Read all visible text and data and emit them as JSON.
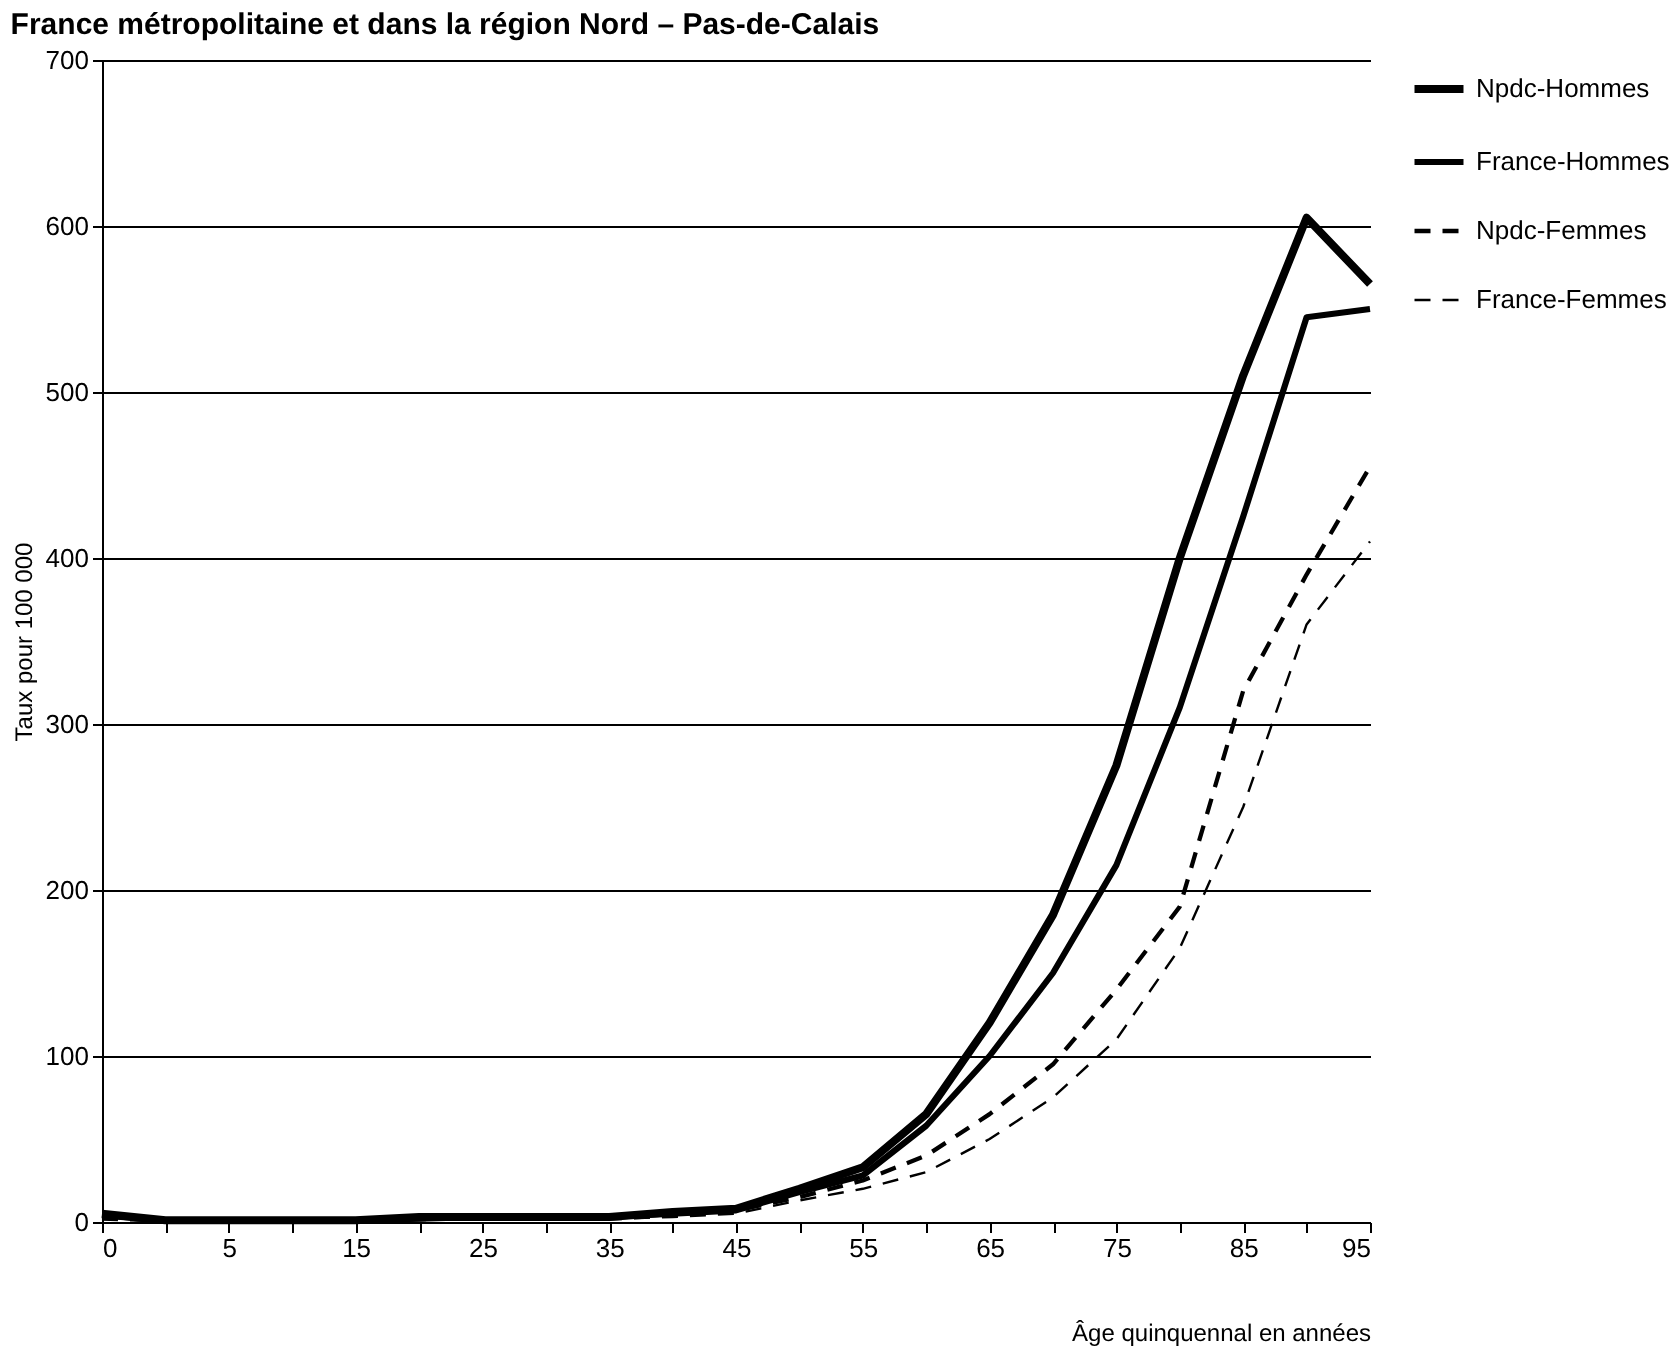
{
  "chart_data": {
    "type": "line",
    "title": "France métropolitaine et dans la région Nord – Pas-de-Calais",
    "xlabel": "Âge quinquennal en années",
    "ylabel": "Taux pour 100 000",
    "categories": [
      "0",
      null,
      "5",
      null,
      "15",
      null,
      "25",
      null,
      "35",
      null,
      "45",
      null,
      "55",
      null,
      "65",
      null,
      "75",
      null,
      "85",
      null,
      "95"
    ],
    "ylim": [
      0,
      700
    ],
    "yticks": [
      0,
      100,
      200,
      300,
      400,
      500,
      600,
      700
    ],
    "grid": "y",
    "legend": "right",
    "series": [
      {
        "name": "Npdc-Hommes",
        "color": "#000000",
        "line_style": "solid",
        "values": [
          5,
          1,
          1,
          1,
          1,
          3,
          3,
          3,
          3,
          6,
          8,
          20,
          33,
          65,
          120,
          185,
          275,
          400,
          510,
          605,
          565
        ]
      },
      {
        "name": "France-Hommes",
        "color": "#000000",
        "line_style": "solid",
        "values": [
          4,
          1,
          1,
          1,
          1,
          2,
          3,
          3,
          3,
          5,
          7,
          18,
          28,
          58,
          100,
          150,
          215,
          310,
          425,
          545,
          550
        ]
      },
      {
        "name": "Npdc-Femmes",
        "color": "#000000",
        "line_style": "dashed",
        "values": [
          2,
          1,
          1,
          1,
          1,
          2,
          2,
          2,
          2,
          4,
          7,
          15,
          25,
          40,
          65,
          95,
          140,
          190,
          320,
          390,
          455
        ]
      },
      {
        "name": "France-Femmes",
        "color": "#000000",
        "line_style": "dashed",
        "values": [
          2,
          1,
          1,
          1,
          1,
          1,
          2,
          2,
          2,
          3,
          5,
          13,
          20,
          30,
          50,
          75,
          110,
          165,
          250,
          360,
          410
        ]
      }
    ]
  }
}
